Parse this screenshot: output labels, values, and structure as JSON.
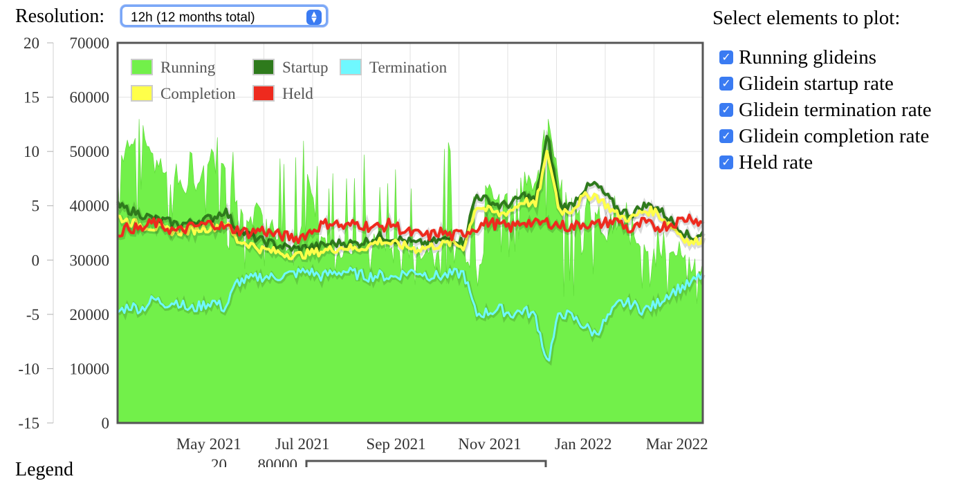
{
  "resolution": {
    "label": "Resolution:",
    "selected": "12h (12 months total)"
  },
  "elements_panel": {
    "title": "Select elements to plot:",
    "items": [
      {
        "label": "Running glideins",
        "checked": true
      },
      {
        "label": "Glidein startup rate",
        "checked": true
      },
      {
        "label": "Glidein termination rate",
        "checked": true
      },
      {
        "label": "Glidein completion rate",
        "checked": true
      },
      {
        "label": "Held rate",
        "checked": true
      }
    ]
  },
  "bottom_partial": {
    "left_label": "Legend",
    "left_tick": "20",
    "right_tick": "80000"
  },
  "chart_data": {
    "type": "area",
    "x_ticks": [
      "May 2021",
      "Jul 2021",
      "Sep 2021",
      "Nov 2021",
      "Jan 2022",
      "Mar 2022"
    ],
    "x_tick_fracs": [
      0.17,
      0.33,
      0.49,
      0.65,
      0.81,
      0.97
    ],
    "y_left": {
      "ticks": [
        20,
        15,
        10,
        5,
        0,
        -5,
        -10,
        -15
      ],
      "range": [
        -15,
        20
      ]
    },
    "y_right": {
      "ticks": [
        70000,
        60000,
        50000,
        40000,
        30000,
        20000,
        10000,
        0
      ],
      "range": [
        0,
        70000
      ]
    },
    "grid": true,
    "legend_position": "top-left",
    "legend": [
      {
        "name": "Running",
        "color": "#72f04a"
      },
      {
        "name": "Startup",
        "color": "#2e7a1c"
      },
      {
        "name": "Termination",
        "color": "#6ff8ff"
      },
      {
        "name": "Completion",
        "color": "#ffff4a"
      },
      {
        "name": "Held",
        "color": "#ee2a1e"
      }
    ],
    "series": [
      {
        "name": "Running",
        "axis": "right",
        "color": "#72f04a",
        "base": [
          48000,
          52000,
          53000,
          50000,
          46000,
          44000,
          43000,
          45000,
          50000,
          46000,
          41000,
          38000,
          40000,
          36000,
          31000,
          30000,
          46000,
          34000,
          31000,
          32000,
          33000,
          33000,
          34000,
          32000,
          32000,
          31000,
          32000,
          33000,
          34000,
          33000,
          42000,
          43000,
          41000,
          42000,
          46000,
          42000,
          58000,
          43000,
          40000,
          39000,
          38000,
          34000,
          37000,
          35000,
          33000,
          32000,
          31000,
          30000,
          29000,
          29000
        ],
        "peaks": [
          57000,
          56000,
          56000,
          55000,
          50000,
          49000,
          50000,
          50000,
          55000,
          53000,
          54000,
          53000,
          54000,
          48000,
          53000,
          53000,
          54000,
          48000,
          49000,
          52000,
          53000,
          48000,
          45000,
          47000,
          52000,
          44000,
          48000,
          51000,
          52000,
          53000,
          43000,
          44000,
          45000,
          44000,
          47000,
          44000,
          60000,
          47000,
          43000,
          44000,
          40000,
          40000,
          43000,
          40000,
          37000,
          36000,
          36000,
          34000,
          30000,
          30000
        ],
        "troughs": [
          34000,
          35000,
          35000,
          34000,
          33000,
          33000,
          34000,
          34000,
          33000,
          33000,
          29000,
          28000,
          29000,
          26000,
          25000,
          27000,
          31000,
          28000,
          27000,
          27000,
          27000,
          26000,
          28000,
          28000,
          26000,
          22000,
          25000,
          24000,
          27000,
          29000,
          22000,
          24000,
          22000,
          21000,
          25000,
          27000,
          22000,
          23000,
          23000,
          23000,
          22000,
          23000,
          24000,
          24000,
          23000,
          24000,
          22000,
          20000,
          18000,
          22000
        ]
      },
      {
        "name": "Startup",
        "axis": "left",
        "color": "#2e7a1c",
        "points": [
          5.0,
          4.6,
          4.2,
          3.8,
          3.6,
          3.3,
          3.4,
          3.7,
          3.9,
          4.6,
          2.8,
          2.3,
          1.8,
          1.5,
          1.2,
          1.0,
          1.2,
          1.3,
          1.5,
          1.6,
          1.5,
          1.8,
          2.2,
          2.0,
          1.8,
          1.5,
          1.6,
          1.8,
          2.0,
          1.6,
          6.0,
          5.5,
          5.0,
          5.2,
          6.0,
          5.5,
          11.5,
          5.0,
          5.0,
          6.5,
          7.0,
          5.8,
          4.6,
          4.2,
          5.0,
          5.0,
          4.0,
          3.0,
          2.0,
          2.5
        ]
      },
      {
        "name": "Completion",
        "axis": "left",
        "color": "#ffff4a",
        "points": [
          4.0,
          3.5,
          3.2,
          3.0,
          2.8,
          2.6,
          2.7,
          2.9,
          3.0,
          3.5,
          1.8,
          1.5,
          1.0,
          0.8,
          0.6,
          0.4,
          0.6,
          0.8,
          1.0,
          1.2,
          1.0,
          1.3,
          1.8,
          1.5,
          1.3,
          1.0,
          1.2,
          1.4,
          1.6,
          1.2,
          5.0,
          4.6,
          4.2,
          4.6,
          5.5,
          5.0,
          10.0,
          4.5,
          4.6,
          5.8,
          6.0,
          5.0,
          4.0,
          3.8,
          4.5,
          4.5,
          3.5,
          2.5,
          1.5,
          2.0
        ]
      },
      {
        "name": "Held",
        "axis": "left",
        "color": "#ee2a1e",
        "points": [
          2.5,
          3.0,
          2.8,
          3.5,
          3.0,
          2.6,
          3.0,
          3.2,
          3.4,
          3.0,
          2.8,
          2.5,
          2.8,
          2.4,
          2.2,
          2.0,
          2.5,
          3.2,
          3.5,
          3.0,
          3.4,
          3.1,
          3.0,
          3.4,
          2.6,
          2.4,
          2.2,
          2.6,
          2.2,
          2.5,
          3.0,
          3.5,
          3.2,
          3.0,
          3.6,
          3.3,
          3.5,
          3.2,
          3.0,
          3.4,
          3.2,
          3.5,
          3.6,
          2.6,
          3.5,
          3.0,
          3.2,
          3.6,
          4.0,
          3.3
        ]
      },
      {
        "name": "Termination",
        "axis": "left",
        "color": "#6ff8ff",
        "points": [
          -4.8,
          -4.2,
          -4.5,
          -3.6,
          -4.0,
          -3.8,
          -4.6,
          -4.2,
          -3.8,
          -4.5,
          -2.0,
          -1.8,
          -1.5,
          -1.6,
          -1.4,
          -1.2,
          -1.0,
          -1.5,
          -1.2,
          -1.0,
          -1.3,
          -1.5,
          -1.4,
          -1.6,
          -1.2,
          -1.0,
          -1.4,
          -1.5,
          -1.3,
          -1.2,
          -5.0,
          -4.8,
          -4.5,
          -5.0,
          -4.6,
          -5.2,
          -9.5,
          -4.8,
          -5.2,
          -6.0,
          -6.8,
          -5.4,
          -4.0,
          -4.0,
          -4.6,
          -4.2,
          -3.2,
          -2.6,
          -2.2,
          -1.3
        ]
      }
    ]
  }
}
